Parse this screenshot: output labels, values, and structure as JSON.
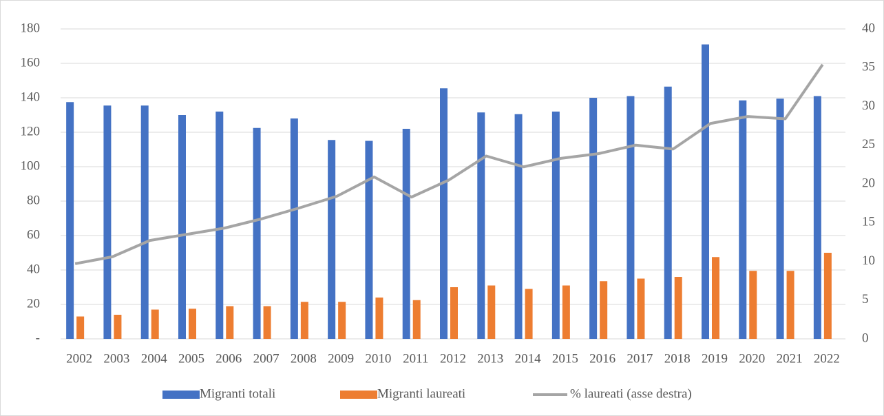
{
  "chart_data": {
    "type": "bar",
    "categories": [
      "2002",
      "2003",
      "2004",
      "2005",
      "2006",
      "2007",
      "2008",
      "2009",
      "2010",
      "2011",
      "2012",
      "2013",
      "2014",
      "2015",
      "2016",
      "2017",
      "2018",
      "2019",
      "2020",
      "2021",
      "2022"
    ],
    "series": [
      {
        "name": "Migranti totali",
        "color": "#4472c4",
        "type": "bar",
        "values": [
          137.5,
          135.5,
          135.5,
          130,
          132,
          122.5,
          128,
          115.5,
          115,
          122,
          145.5,
          131.5,
          130.5,
          132,
          140,
          141,
          146.5,
          171,
          138.5,
          139.5,
          141
        ]
      },
      {
        "name": "Migranti laureati",
        "color": "#ed7d31",
        "type": "bar",
        "values": [
          13,
          14,
          17,
          17.5,
          19,
          19,
          21.5,
          21.5,
          24,
          22.5,
          30,
          31,
          29,
          31,
          33.5,
          35,
          36,
          47.5,
          39.5,
          39.5,
          50
        ]
      },
      {
        "name": "% laureati (asse destra)",
        "color": "#a5a5a5",
        "type": "line",
        "axis": "y2",
        "values": [
          9.7,
          10.6,
          12.7,
          13.5,
          14.3,
          15.5,
          16.9,
          18.4,
          20.9,
          18.3,
          20.5,
          23.6,
          22.2,
          23.3,
          23.9,
          25.0,
          24.5,
          27.8,
          28.7,
          28.4,
          35.4
        ]
      }
    ],
    "ylim": [
      0,
      180
    ],
    "yticks": [
      {
        "value": 0,
        "label": "-"
      },
      20,
      40,
      60,
      80,
      100,
      120,
      140,
      160,
      180
    ],
    "y2lim": [
      0,
      40
    ],
    "y2ticks": [
      0,
      5,
      10,
      15,
      20,
      25,
      30,
      35,
      40
    ],
    "grid": true,
    "legend": "bottom"
  }
}
